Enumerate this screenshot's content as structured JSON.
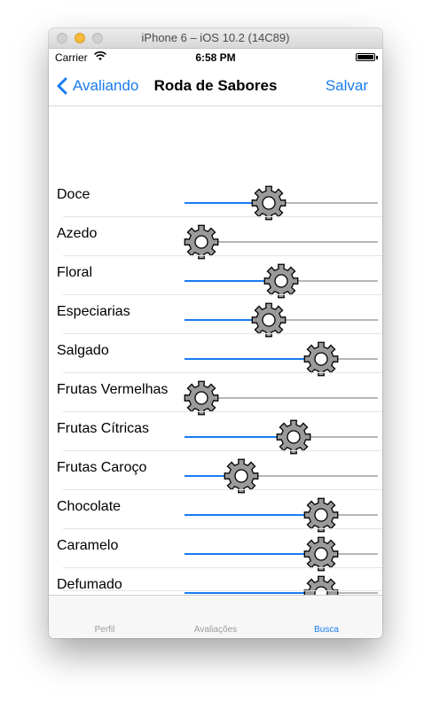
{
  "window": {
    "title": "iPhone 6 – iOS 10.2 (14C89)"
  },
  "status_bar": {
    "carrier": "Carrier",
    "time": "6:58 PM"
  },
  "nav": {
    "back_label": "Avaliando",
    "title": "Roda de Sabores",
    "save_label": "Salvar"
  },
  "colors": {
    "accent": "#1a7cf0",
    "track": "#b7b7b7",
    "thumb": "#9a9a9a"
  },
  "flavors": [
    {
      "label": "Doce",
      "value": 0.42
    },
    {
      "label": "Azedo",
      "value": 0.0
    },
    {
      "label": "Floral",
      "value": 0.5
    },
    {
      "label": "Especiarias",
      "value": 0.42
    },
    {
      "label": "Salgado",
      "value": 0.75
    },
    {
      "label": "Frutas Vermelhas",
      "value": 0.0
    },
    {
      "label": "Frutas Cítricas",
      "value": 0.58
    },
    {
      "label": "Frutas Caroço",
      "value": 0.25
    },
    {
      "label": "Chocolate",
      "value": 0.75
    },
    {
      "label": "Caramelo",
      "value": 0.75
    },
    {
      "label": "Defumado",
      "value": 0.75
    }
  ],
  "tabs": [
    {
      "label": "Perfil",
      "active": false
    },
    {
      "label": "Avaliações",
      "active": false
    },
    {
      "label": "Busca",
      "active": true
    }
  ]
}
